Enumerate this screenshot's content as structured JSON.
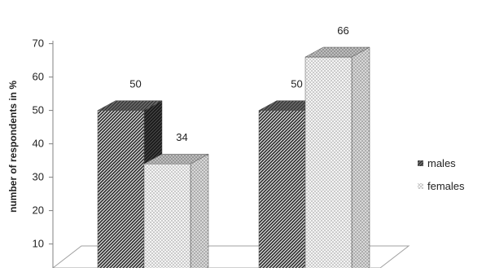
{
  "chart_data": {
    "type": "bar",
    "categories": [
      "",
      ""
    ],
    "series": [
      {
        "name": "males",
        "values": [
          50,
          50
        ],
        "data_labels": [
          "50",
          "50"
        ]
      },
      {
        "name": "females",
        "values": [
          34,
          66
        ],
        "data_labels": [
          "34",
          "66"
        ]
      }
    ],
    "title": "",
    "xlabel": "",
    "ylabel": "number of respondents in %",
    "ylim": [
      0,
      70
    ],
    "yticks": [
      10,
      20,
      30,
      40,
      50,
      60,
      70
    ],
    "ytick_labels": [
      "10",
      "20",
      "30",
      "40",
      "50",
      "60",
      "70"
    ],
    "grid": false,
    "legend_position": "right",
    "three_d": true,
    "colors": {
      "males": "#3a3a3a",
      "females": "#d8d8d8",
      "axis": "#808080"
    }
  }
}
